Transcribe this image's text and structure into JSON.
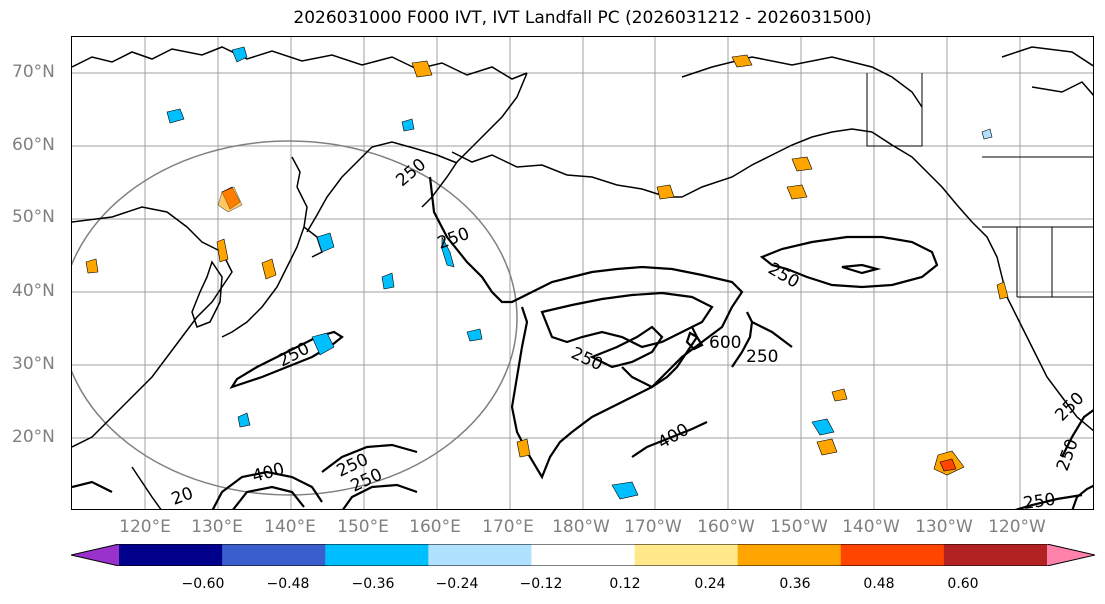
{
  "title": "2026031000 F000 IVT, IVT Landfall PC (2026031212 - 2026031500)",
  "lat_labels": [
    "70°N",
    "60°N",
    "50°N",
    "40°N",
    "30°N",
    "20°N"
  ],
  "lon_labels": [
    "120°E",
    "130°E",
    "140°E",
    "150°E",
    "160°E",
    "170°E",
    "180°W",
    "170°W",
    "160°W",
    "150°W",
    "140°W",
    "130°W",
    "120°W"
  ],
  "contour_labels": [
    "250",
    "250",
    "250",
    "250",
    "250",
    "600",
    "250",
    "400",
    "400",
    "250",
    "250",
    "250",
    "250",
    "250",
    "20"
  ],
  "colorbar": {
    "ticks": [
      "−0.60",
      "−0.48",
      "−0.36",
      "−0.24",
      "−0.12",
      "0.12",
      "0.24",
      "0.36",
      "0.48",
      "0.60"
    ],
    "colors": [
      "#9932cc",
      "#00008b",
      "#3a5fcd",
      "#00bfff",
      "#b0e2ff",
      "#ffffff",
      "#ffe98a",
      "#ffa500",
      "#ff4500",
      "#b22222",
      "#ff82ab"
    ]
  }
}
